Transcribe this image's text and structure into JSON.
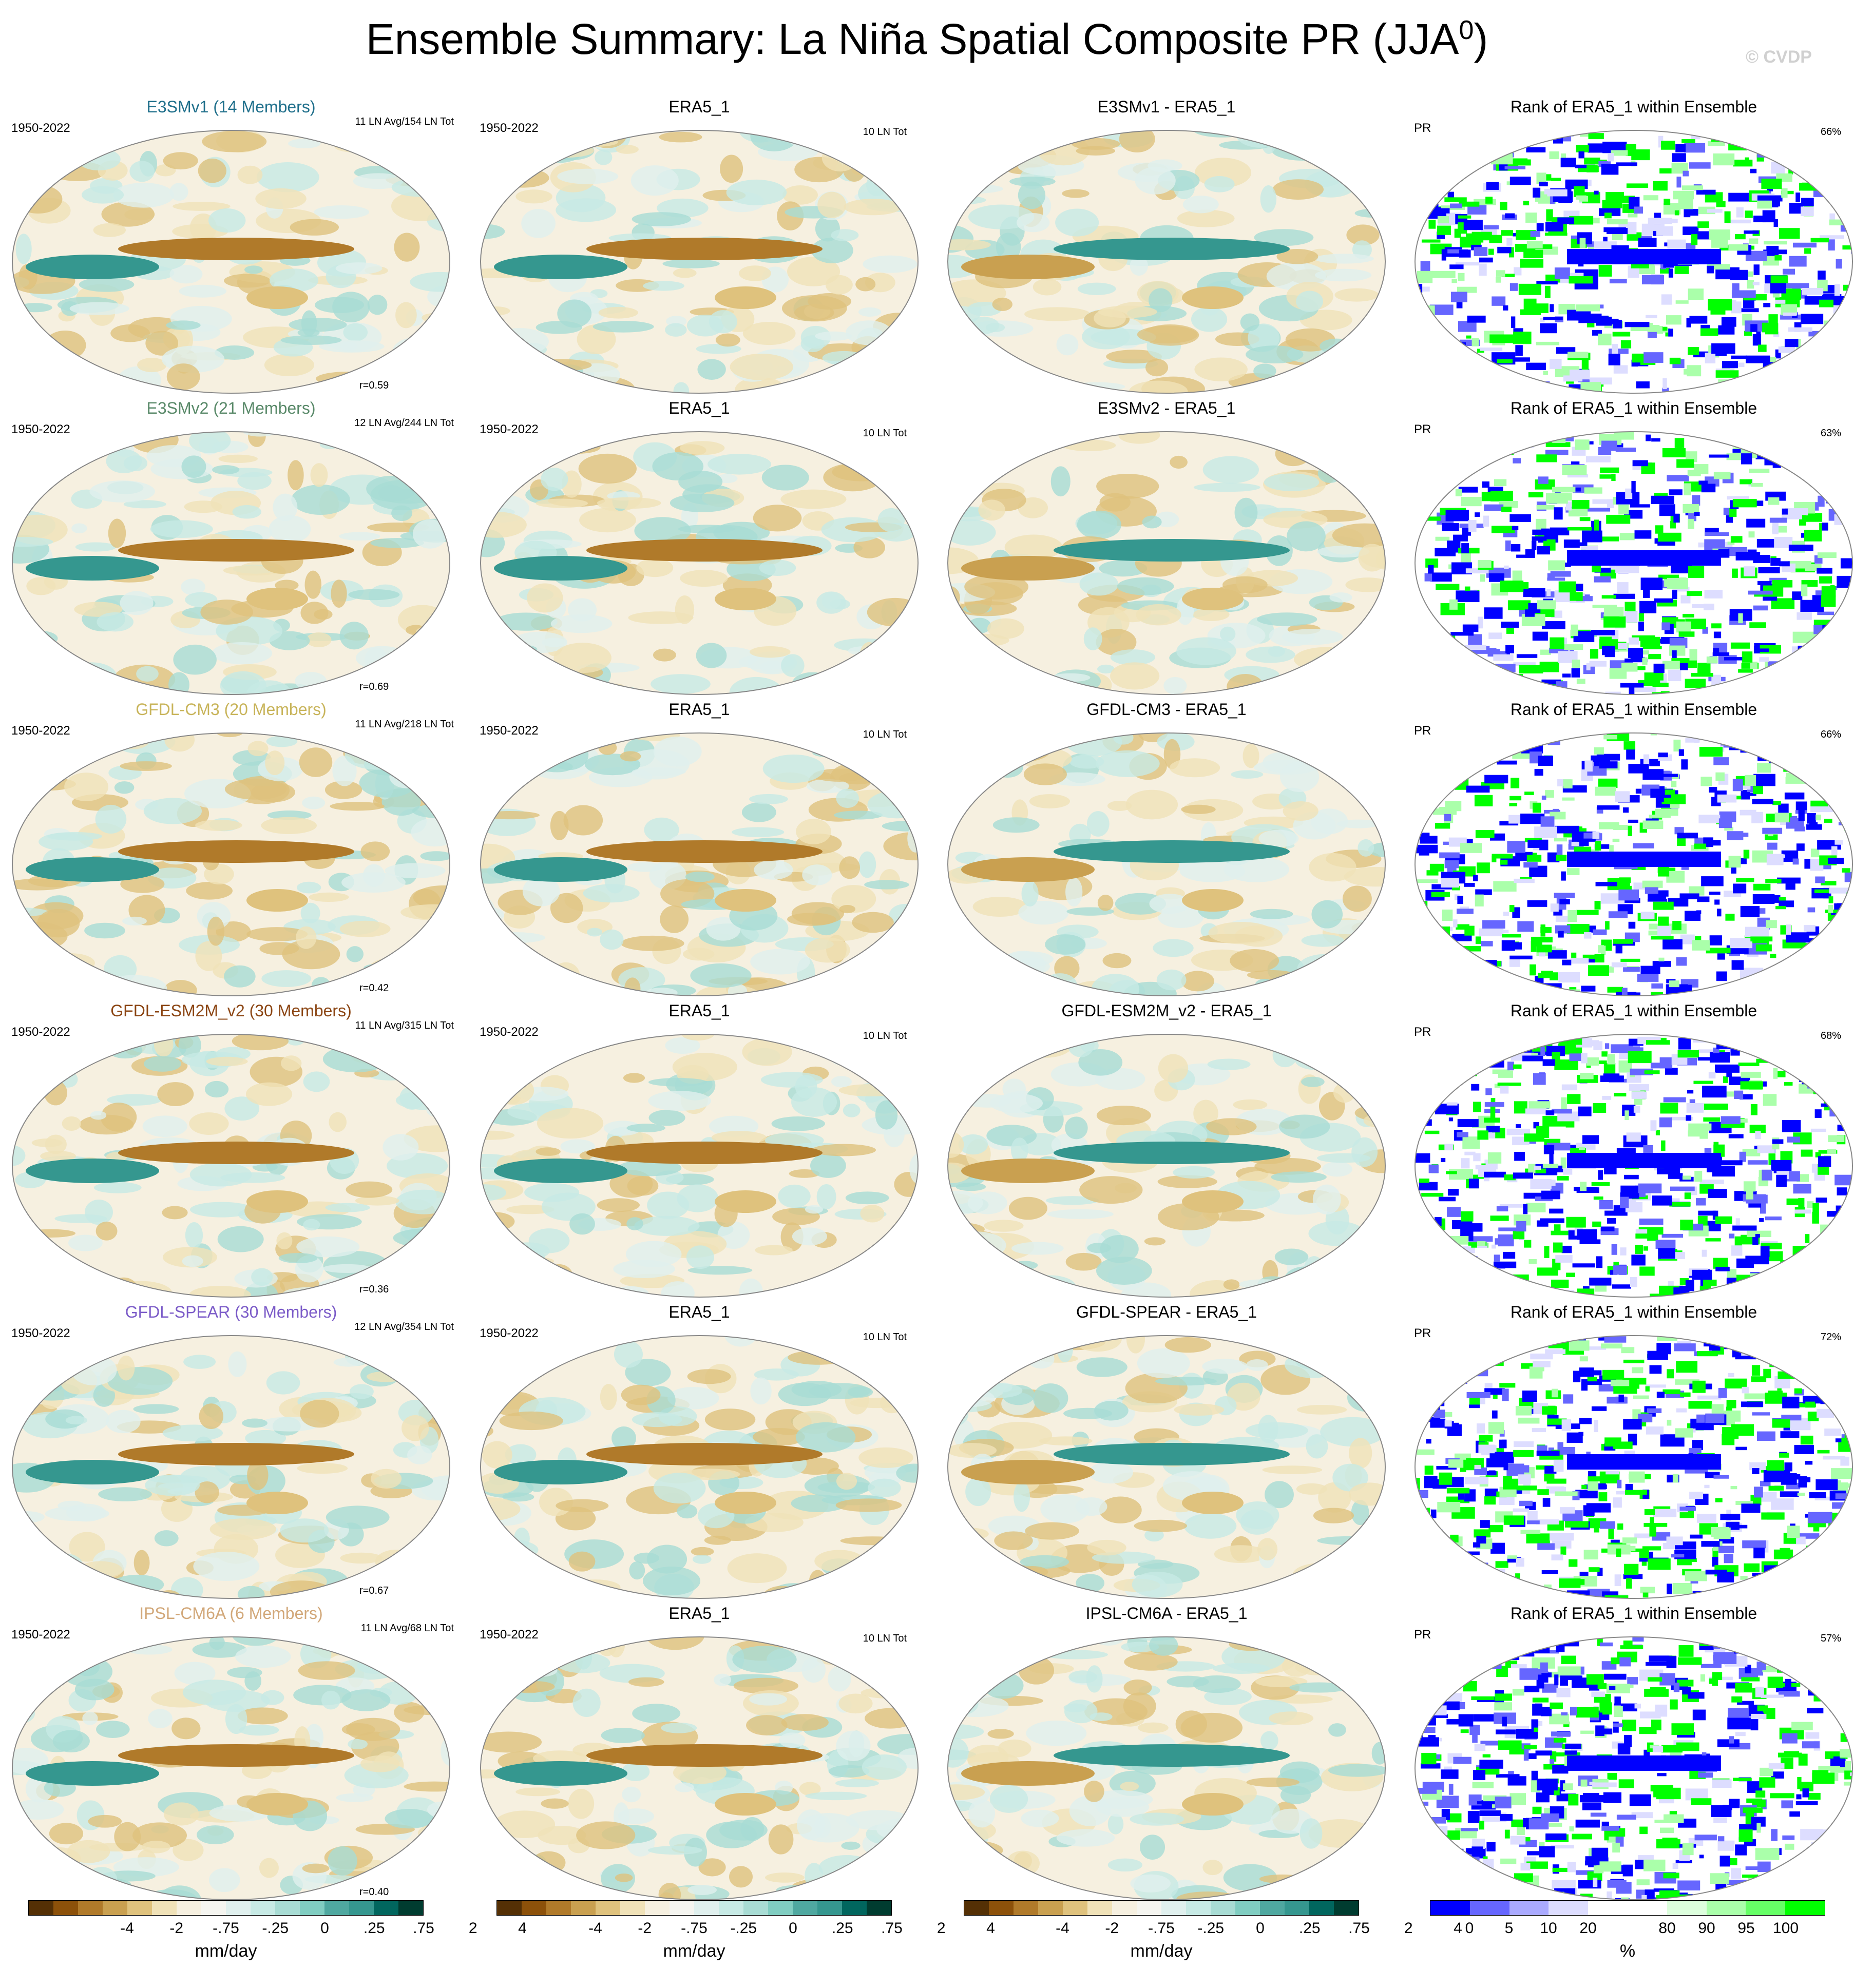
{
  "figure": {
    "title": "Ensemble Summary: La Niña Spatial Composite PR (JJA",
    "title_sup": "0",
    "title_close": ")",
    "watermark": "© CVDP"
  },
  "chart_data": {
    "type": "heatmap",
    "rows": [
      {
        "model": "E3SMv1 (14 Members)",
        "model_color": "#1f6f8b",
        "diff": "E3SMv1 - ERA5_1",
        "stat": "11 LN Avg/154 LN Tot",
        "r": "r=0.59",
        "pct": "66%"
      },
      {
        "model": "E3SMv2 (21 Members)",
        "model_color": "#5a8a6a",
        "diff": "E3SMv2 - ERA5_1",
        "stat": "12 LN Avg/244 LN Tot",
        "r": "r=0.69",
        "pct": "63%"
      },
      {
        "model": "GFDL-CM3 (20 Members)",
        "model_color": "#c8b45a",
        "diff": "GFDL-CM3 - ERA5_1",
        "stat": "11 LN Avg/218 LN Tot",
        "r": "r=0.42",
        "pct": "66%"
      },
      {
        "model": "GFDL-ESM2M_v2 (30 Members)",
        "model_color": "#8b4513",
        "diff": "GFDL-ESM2M_v2 - ERA5_1",
        "stat": "11 LN Avg/315 LN Tot",
        "r": "r=0.36",
        "pct": "68%"
      },
      {
        "model": "GFDL-SPEAR (30 Members)",
        "model_color": "#7b5bc8",
        "diff": "GFDL-SPEAR - ERA5_1",
        "stat": "12 LN Avg/354 LN Tot",
        "r": "r=0.67",
        "pct": "72%"
      },
      {
        "model": "IPSL-CM6A (6 Members)",
        "model_color": "#d2a87a",
        "diff": "IPSL-CM6A - ERA5_1",
        "stat": "11 LN Avg/68 LN Tot",
        "r": "r=0.40",
        "pct": "57%"
      }
    ],
    "obs_title": "ERA5_1",
    "obs_stat": "10 LN Tot",
    "period": "1950-2022",
    "rank_title": "Rank of ERA5_1 within Ensemble",
    "rank_var": "PR",
    "colorbar_pr": {
      "ticks": [
        "-4",
        "-2",
        "-.75",
        "-.25",
        "0",
        ".25",
        ".75",
        "2",
        "4"
      ],
      "unit": "mm/day",
      "colors": [
        "#543005",
        "#8c510a",
        "#b07a2a",
        "#c9a050",
        "#dfc27d",
        "#f0e2b8",
        "#f6f0e0",
        "#f5f5f0",
        "#e0f0ee",
        "#c7eae5",
        "#a8dcd4",
        "#80cdc1",
        "#4fa8a0",
        "#35978f",
        "#01665e",
        "#003c30"
      ]
    },
    "colorbar_rank": {
      "ticks": [
        "0",
        "5",
        "10",
        "20",
        "80",
        "90",
        "95",
        "100"
      ],
      "unit": "%",
      "colors": [
        "#0000ff",
        "#6666ff",
        "#aaaaff",
        "#ddddff",
        "#ffffff",
        "#ffffff",
        "#ddffdd",
        "#aaffaa",
        "#66ff66",
        "#00ff00"
      ]
    }
  }
}
